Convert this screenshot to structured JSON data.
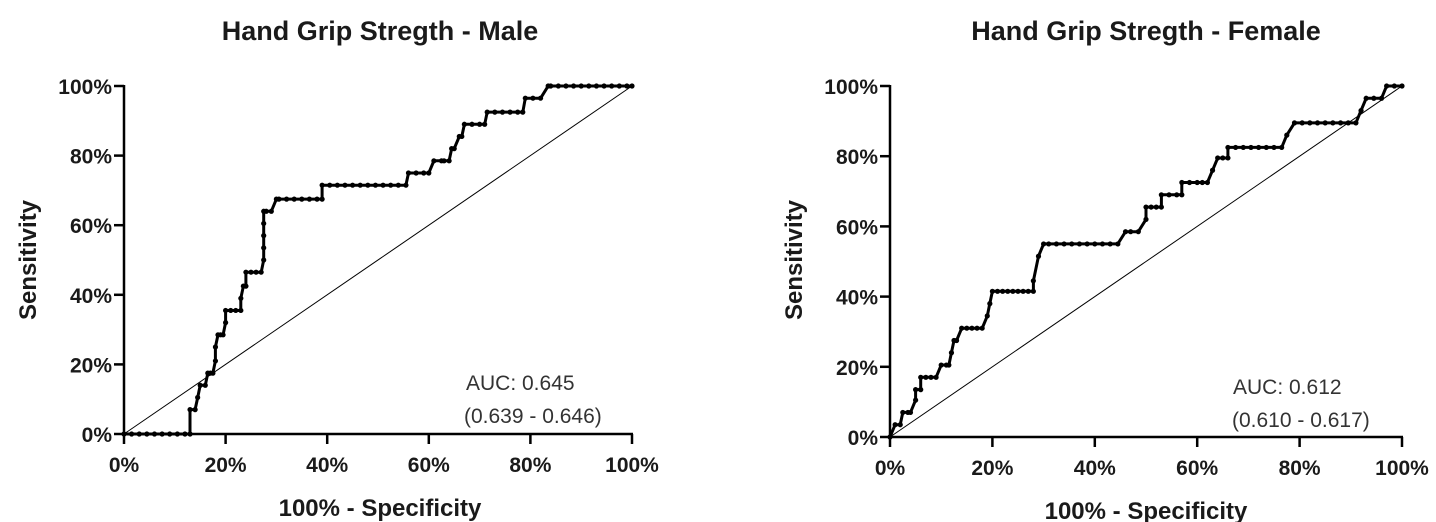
{
  "chart_data": [
    {
      "type": "line",
      "title": "Hand Grip Stregth - Male",
      "xlabel": "100% - Specificity",
      "ylabel": "Sensitivity",
      "xlim": [
        0,
        100
      ],
      "ylim": [
        0,
        100
      ],
      "x_ticks": [
        "0%",
        "20%",
        "40%",
        "60%",
        "80%",
        "100%"
      ],
      "y_ticks": [
        "0%",
        "20%",
        "40%",
        "60%",
        "80%",
        "100%"
      ],
      "auc_label": "AUC: 0.645",
      "ci_label": "(0.639 - 0.646)",
      "reference_line": [
        [
          0,
          0
        ],
        [
          100,
          100
        ]
      ],
      "series": [
        {
          "x": [
            0,
            1.5,
            3,
            4.5,
            6,
            7.5,
            9,
            10.5,
            12,
            13,
            13,
            14,
            14.5,
            15,
            16,
            16.5,
            17,
            17.5,
            18,
            18,
            18.5,
            19,
            19.5,
            20,
            20,
            21,
            22,
            23,
            23,
            23.5,
            24,
            24,
            25,
            26,
            27,
            27.5,
            27.5,
            27.5,
            27.5,
            27.5,
            28,
            29,
            30,
            30.5,
            32,
            33.5,
            35,
            36.5,
            38,
            39,
            39,
            40.5,
            42,
            43.5,
            45,
            46.5,
            48,
            49.5,
            51,
            52.5,
            54,
            55.5,
            56,
            57.5,
            59,
            60,
            61,
            62.5,
            63,
            64,
            64.5,
            65,
            66,
            66.5,
            67,
            68.5,
            70,
            71,
            71.5,
            73,
            74.5,
            76,
            77.5,
            78.5,
            79,
            80.5,
            82,
            83.5,
            84,
            85.5,
            87,
            88.5,
            90,
            91.5,
            93,
            94.5,
            96,
            97.5,
            99,
            100
          ],
          "y": [
            0,
            0,
            0,
            0,
            0,
            0,
            0,
            0,
            0,
            0,
            7,
            7,
            10.5,
            14,
            14,
            17.5,
            17.5,
            17.5,
            21,
            25,
            28.5,
            28.5,
            28.5,
            32,
            35.5,
            35.5,
            35.5,
            35.5,
            39,
            42.5,
            42.5,
            46.5,
            46.5,
            46.5,
            46.5,
            50,
            53.5,
            57,
            60.5,
            64,
            64,
            64,
            67.5,
            67.5,
            67.5,
            67.5,
            67.5,
            67.5,
            67.5,
            67.5,
            71.5,
            71.5,
            71.5,
            71.5,
            71.5,
            71.5,
            71.5,
            71.5,
            71.5,
            71.5,
            71.5,
            71.5,
            75,
            75,
            75,
            75,
            78.5,
            78.5,
            78.5,
            78.5,
            82,
            82,
            85.5,
            85.5,
            89,
            89,
            89,
            89,
            92.5,
            92.5,
            92.5,
            92.5,
            92.5,
            92.5,
            96.5,
            96.5,
            96.5,
            100,
            100,
            100,
            100,
            100,
            100,
            100,
            100,
            100,
            100,
            100,
            100,
            100
          ]
        }
      ]
    },
    {
      "type": "line",
      "title": "Hand Grip Stregth - Female",
      "xlabel": "100% - Specificity",
      "ylabel": "Sensitivity",
      "xlim": [
        0,
        100
      ],
      "ylim": [
        0,
        100
      ],
      "x_ticks": [
        "0%",
        "20%",
        "40%",
        "60%",
        "80%",
        "100%"
      ],
      "y_ticks": [
        "0%",
        "20%",
        "40%",
        "60%",
        "80%",
        "100%"
      ],
      "auc_label": "AUC: 0.612",
      "ci_label": "(0.610 - 0.617)",
      "reference_line": [
        [
          0,
          0
        ],
        [
          100,
          100
        ]
      ],
      "series": [
        {
          "x": [
            0,
            1,
            2,
            2.5,
            3.5,
            4,
            5,
            5,
            6,
            6,
            7,
            8,
            9,
            10,
            11,
            11.5,
            12,
            12.5,
            13,
            14,
            15,
            16,
            17,
            18,
            19,
            19.5,
            20,
            21,
            22,
            23,
            24,
            25,
            26,
            27,
            28,
            28,
            29,
            30,
            31,
            32.5,
            34,
            35.5,
            37,
            38.5,
            40,
            41.5,
            43,
            44.5,
            46,
            47,
            48.5,
            50,
            50,
            51,
            52,
            53,
            53,
            54.5,
            56,
            57,
            57,
            58.5,
            60,
            61,
            62,
            63,
            64,
            65,
            66,
            66,
            67.5,
            69,
            70.5,
            72,
            73.5,
            75,
            76.5,
            77.5,
            79,
            80.5,
            82,
            83.5,
            85,
            86.5,
            88,
            89.5,
            91,
            92,
            93,
            94.5,
            96,
            97,
            98.5,
            100
          ],
          "y": [
            0,
            3.5,
            3.5,
            7,
            7,
            7,
            10.5,
            13.5,
            13.5,
            17,
            17,
            17,
            17,
            20.5,
            20.5,
            20.5,
            24,
            27.5,
            27.5,
            31,
            31,
            31,
            31,
            31,
            34.5,
            38,
            41.5,
            41.5,
            41.5,
            41.5,
            41.5,
            41.5,
            41.5,
            41.5,
            41.5,
            44.5,
            51.5,
            55,
            55,
            55,
            55,
            55,
            55,
            55,
            55,
            55,
            55,
            55,
            58.5,
            58.5,
            58.5,
            62,
            65.5,
            65.5,
            65.5,
            65.5,
            69,
            69,
            69,
            69,
            72.5,
            72.5,
            72.5,
            72.5,
            72.5,
            76,
            79.5,
            79.5,
            79.5,
            82.5,
            82.5,
            82.5,
            82.5,
            82.5,
            82.5,
            82.5,
            82.5,
            86,
            89.5,
            89.5,
            89.5,
            89.5,
            89.5,
            89.5,
            89.5,
            89.5,
            89.5,
            93,
            96.5,
            96.5,
            96.5,
            100,
            100,
            100
          ]
        }
      ]
    }
  ]
}
